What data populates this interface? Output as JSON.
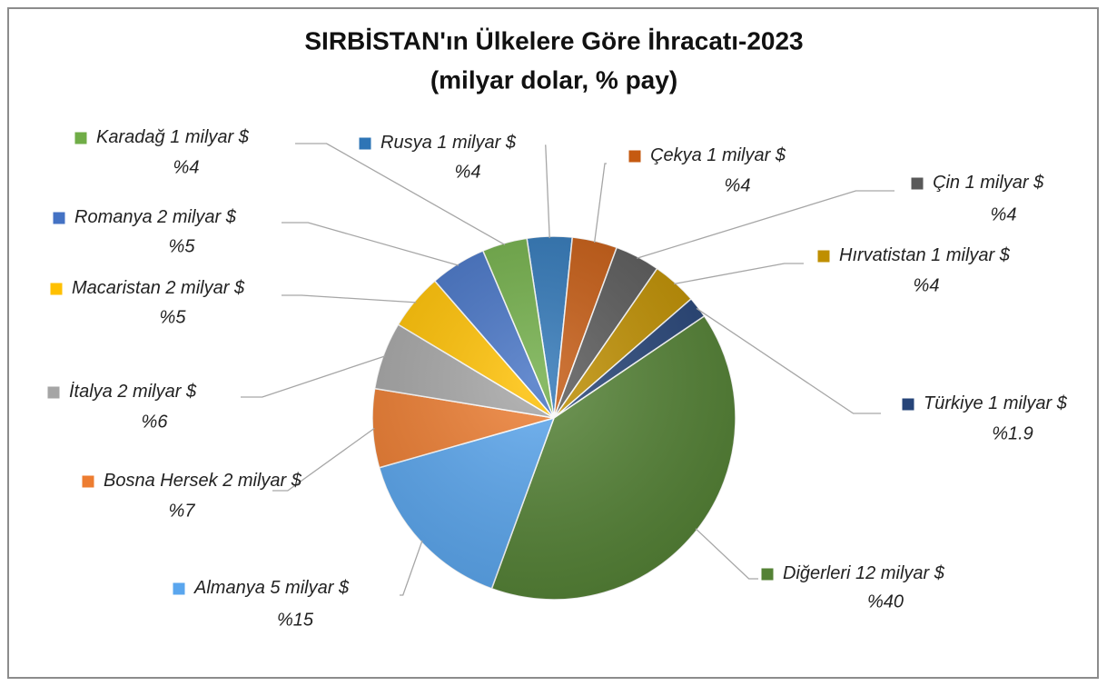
{
  "chart_data": {
    "type": "pie",
    "title": "SIRBİSTAN'ın Ülkelere Göre İhracatı-2023",
    "subtitle": "(milyar dolar, % pay)",
    "categories": [
      "Rusya",
      "Çekya",
      "Çin",
      "Hırvatistan",
      "Türkiye",
      "Diğerleri",
      "Almanya",
      "Bosna Hersek",
      "İtalya",
      "Macaristan",
      "Romanya",
      "Karadağ"
    ],
    "values": [
      4,
      4,
      4,
      4,
      1.9,
      40,
      15,
      7,
      6,
      5,
      5,
      4
    ],
    "value_labels": [
      "%4",
      "%4",
      "%4",
      "%4",
      "%1.9",
      "%40",
      "%15",
      "%7",
      "%6",
      "%5",
      "%5",
      "%4"
    ],
    "amount_labels": [
      "1 milyar $",
      "1 milyar $",
      "1 milyar $",
      "1 milyar $",
      "1 milyar $",
      "12 milyar $",
      "5 milyar $",
      "2 milyar $",
      "2 milyar $",
      "2 milyar $",
      "2 milyar $",
      "1 milyar $"
    ],
    "colors": [
      "#2e75b6",
      "#c55a11",
      "#595959",
      "#bf8f00",
      "#264478",
      "#548235",
      "#5aa6ee",
      "#ed7d31",
      "#a5a5a5",
      "#ffc000",
      "#4472c4",
      "#70ad47"
    ]
  }
}
